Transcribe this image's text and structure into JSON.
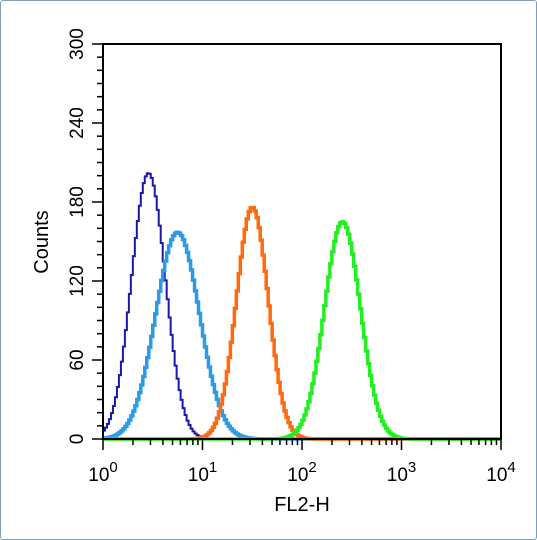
{
  "chart_data": {
    "type": "histogram",
    "title": "",
    "xlabel": "FL2-H",
    "ylabel": "Counts",
    "xscale": "log",
    "xlim": [
      1,
      10000
    ],
    "ylim": [
      0,
      300
    ],
    "x_ticks": [
      {
        "value": 1,
        "base": "10",
        "exp": "0"
      },
      {
        "value": 10,
        "base": "10",
        "exp": "1"
      },
      {
        "value": 100,
        "base": "10",
        "exp": "2"
      },
      {
        "value": 1000,
        "base": "10",
        "exp": "3"
      },
      {
        "value": 10000,
        "base": "10",
        "exp": "4"
      }
    ],
    "y_ticks": [
      {
        "value": 0,
        "label": "0"
      },
      {
        "value": 60,
        "label": "60"
      },
      {
        "value": 120,
        "label": "120"
      },
      {
        "value": 180,
        "label": "180"
      },
      {
        "value": 240,
        "label": "240"
      },
      {
        "value": 300,
        "label": "300"
      }
    ],
    "grid": false,
    "series": [
      {
        "color": "#1a1aa0",
        "peak_x": 2.8,
        "peak_y": 202,
        "width_decades": 0.17,
        "line_width": 2
      },
      {
        "color": "#2b9be8",
        "peak_x": 5.5,
        "peak_y": 157,
        "width_decades": 0.22,
        "line_width": 3.5
      },
      {
        "color": "#ff6a10",
        "peak_x": 31,
        "peak_y": 176,
        "width_decades": 0.16,
        "line_width": 3.5
      },
      {
        "color": "#22ee22",
        "peak_x": 250,
        "peak_y": 165,
        "width_decades": 0.18,
        "line_width": 3.5
      }
    ]
  }
}
